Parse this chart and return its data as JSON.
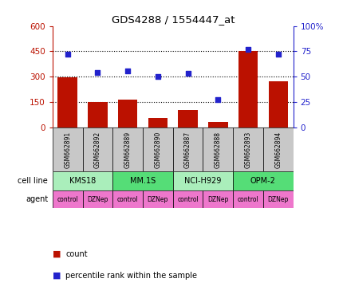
{
  "title": "GDS4288 / 1554447_at",
  "samples": [
    "GSM662891",
    "GSM662892",
    "GSM662889",
    "GSM662890",
    "GSM662887",
    "GSM662888",
    "GSM662893",
    "GSM662894"
  ],
  "counts": [
    295,
    152,
    165,
    55,
    105,
    30,
    450,
    275
  ],
  "percentiles": [
    72,
    54,
    56,
    50,
    53,
    27,
    77,
    72
  ],
  "cell_lines": [
    {
      "label": "KMS18",
      "color": "#AAEEBB",
      "span": [
        0,
        2
      ]
    },
    {
      "label": "MM.1S",
      "color": "#55DD77",
      "span": [
        2,
        4
      ]
    },
    {
      "label": "NCI-H929",
      "color": "#AAEEBB",
      "span": [
        4,
        6
      ]
    },
    {
      "label": "OPM-2",
      "color": "#55DD77",
      "span": [
        6,
        8
      ]
    }
  ],
  "agents": [
    "control",
    "DZNep",
    "control",
    "DZNep",
    "control",
    "DZNep",
    "control",
    "DZNep"
  ],
  "agent_color": "#EE77CC",
  "bar_color": "#BB1100",
  "dot_color": "#2222CC",
  "ylim_left": [
    0,
    600
  ],
  "ylim_right": [
    0,
    100
  ],
  "yticks_left": [
    0,
    150,
    300,
    450,
    600
  ],
  "yticks_right": [
    0,
    25,
    50,
    75,
    100
  ],
  "ytick_labels_left": [
    "0",
    "150",
    "300",
    "450",
    "600"
  ],
  "ytick_labels_right": [
    "0",
    "25",
    "50",
    "75",
    "100%"
  ],
  "sample_bg_color": "#C8C8C8",
  "cell_line_label": "cell line",
  "agent_label": "agent",
  "legend_count": "count",
  "legend_pct": "percentile rank within the sample",
  "arrow_color": "#888888"
}
